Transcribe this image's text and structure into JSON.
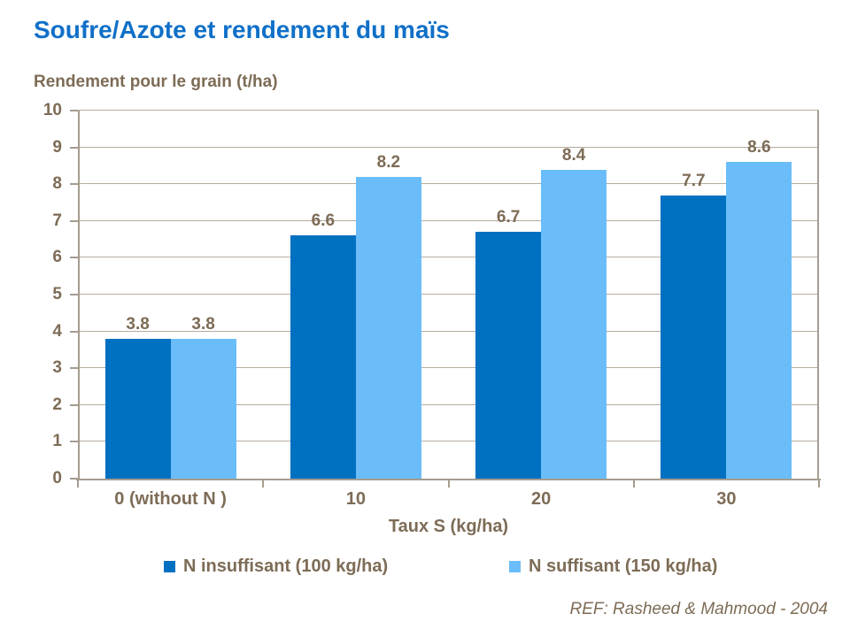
{
  "chart_data": {
    "type": "bar",
    "title": "Soufre/Azote et rendement du maïs",
    "axis_title_y": "Rendement pour le grain (t/ha)",
    "axis_title_x": "Taux S (kg/ha)",
    "categories": [
      "0 (without N )",
      "10",
      "20",
      "30"
    ],
    "series": [
      {
        "name": "N insuffisant (100 kg/ha)",
        "color": "#0070C0",
        "values": [
          3.8,
          6.6,
          6.7,
          7.7
        ]
      },
      {
        "name": "N suffisant (150 kg/ha)",
        "color": "#6ABDF9",
        "values": [
          3.8,
          8.2,
          8.4,
          8.6
        ]
      }
    ],
    "ylim": [
      0,
      10
    ],
    "ytick_step": 1,
    "yticks": [
      0,
      1,
      2,
      3,
      4,
      5,
      6,
      7,
      8,
      9,
      10
    ],
    "grid": true,
    "legend_position": "bottom",
    "annotation": "REF: Rasheed & Mahmood - 2004"
  },
  "colors": {
    "title_blue": "#1070C8",
    "text_brown": "#7D6C56",
    "gridline": "#B5AB9F",
    "axis": "#A69C8F",
    "bar_dark": "#0070C0",
    "bar_light": "#6ABDF9",
    "background": "#FFFFFF"
  }
}
